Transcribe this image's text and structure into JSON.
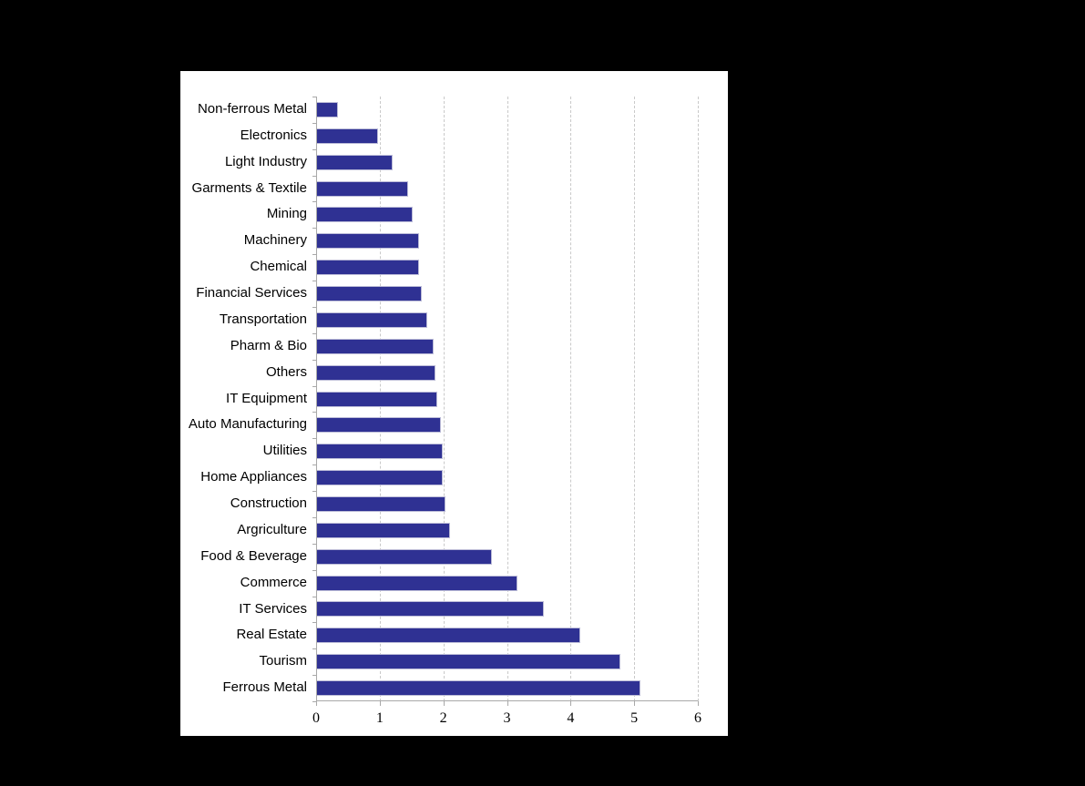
{
  "page": {
    "background_color": "#000000",
    "panel_background_color": "#ffffff"
  },
  "chart_data": {
    "type": "bar",
    "orientation": "horizontal",
    "title": "",
    "xlabel": "",
    "ylabel": "",
    "categories": [
      "Non-ferrous Metal",
      "Electronics",
      "Light Industry",
      "Garments & Textile",
      "Mining",
      "Machinery",
      "Chemical",
      "Financial Services",
      "Transportation",
      "Pharm & Bio",
      "Others",
      "IT Equipment",
      "Auto Manufacturing",
      "Utilities",
      "Home Appliances",
      "Construction",
      "Argriculture",
      "Food & Beverage",
      "Commerce",
      "IT Services",
      "Real Estate",
      "Tourism",
      "Ferrous Metal"
    ],
    "values": [
      0.35,
      0.97,
      1.21,
      1.45,
      1.52,
      1.62,
      1.62,
      1.66,
      1.74,
      1.85,
      1.87,
      1.91,
      1.96,
      1.99,
      1.99,
      2.04,
      2.11,
      2.77,
      3.17,
      3.58,
      4.15,
      4.78,
      5.1
    ],
    "xlim": [
      0,
      6
    ],
    "x_ticks": [
      "0",
      "1",
      "2",
      "3",
      "4",
      "5",
      "6"
    ],
    "grid": "vertical-dashed-at-integers",
    "legend": "none",
    "bar_color": "#2F3193",
    "bar_border_color": "#bdbdd8",
    "axis_color": "#a9a9a9",
    "gridline_color": "#c9c9c9",
    "label_color": "#000000"
  }
}
